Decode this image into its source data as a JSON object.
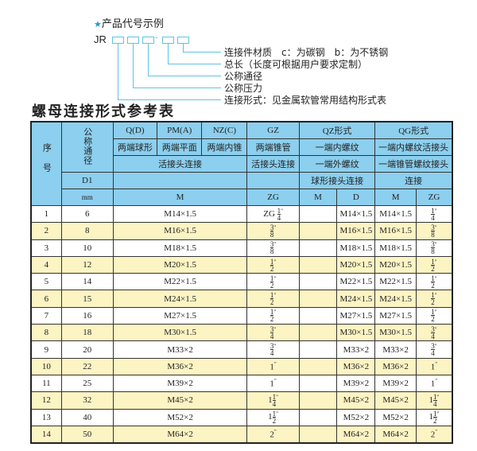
{
  "code_example": {
    "title": "产品代号示例",
    "star_icon": "star-icon",
    "prefix": "JR",
    "dash": "-",
    "labels": [
      "连接件材质　c：为碳钢　b：为不锈钢",
      "总长（长度可根据用户要求定制）",
      "公称通径",
      "公称压力",
      "连接形式：见金属软管常用结构形式表"
    ]
  },
  "table_title": "螺母连接形式参考表",
  "header": {
    "seq": "序号",
    "nominal": "公称通径",
    "d1": "D1",
    "mm": "mm",
    "q": "Q(D)",
    "pm": "PM(A)",
    "nz": "NZ(C)",
    "gz": "GZ",
    "qz": "QZ形式",
    "qg": "QG形式",
    "q_desc": "两端球形",
    "pm_desc": "两端平面",
    "nz_desc": "两端内锥",
    "gz_desc": "两端锥管",
    "qz_desc1": "一端内螺纹",
    "qg_desc1": "一端内螺纹活接头",
    "union": "活接头连接",
    "gz_union": "活接头连接",
    "qz_desc2": "一端外螺纹",
    "qg_desc2": "一端锥管螺纹接头",
    "qz_desc3": "球形接头连接",
    "qg_desc3": "连接",
    "m": "M",
    "zg": "ZG",
    "qz_m": "M",
    "qz_d": "D",
    "qg_m": "M",
    "qg_zg": "ZG"
  },
  "rows": [
    {
      "no": "1",
      "dn": "6",
      "m": "M14×1.5",
      "zg": {
        "pre": "ZG",
        "num": "1",
        "den": "4"
      },
      "qz_d": "M14×1.5",
      "qg_m": "M14×1.5",
      "qg_zg": {
        "num": "1",
        "den": "4"
      }
    },
    {
      "no": "2",
      "dn": "8",
      "m": "M16×1.5",
      "zg": {
        "num": "3",
        "den": "8"
      },
      "qz_d": "M16×1.5",
      "qg_m": "M16×1.5",
      "qg_zg": {
        "num": "3",
        "den": "8"
      }
    },
    {
      "no": "3",
      "dn": "10",
      "m": "M18×1.5",
      "zg": {
        "num": "3",
        "den": "8"
      },
      "qz_d": "M18×1.5",
      "qg_m": "M18×1.5",
      "qg_zg": {
        "num": "3",
        "den": "8"
      }
    },
    {
      "no": "4",
      "dn": "12",
      "m": "M20×1.5",
      "zg": {
        "num": "1",
        "den": "2"
      },
      "qz_d": "M20×1.5",
      "qg_m": "M20×1.5",
      "qg_zg": {
        "num": "1",
        "den": "2"
      }
    },
    {
      "no": "5",
      "dn": "14",
      "m": "M22×1.5",
      "zg": {
        "num": "1",
        "den": "2"
      },
      "qz_d": "M22×1.5",
      "qg_m": "M22×1.5",
      "qg_zg": {
        "num": "1",
        "den": "2"
      }
    },
    {
      "no": "6",
      "dn": "15",
      "m": "M24×1.5",
      "zg": {
        "num": "1",
        "den": "2"
      },
      "qz_d": "M24×1.5",
      "qg_m": "M24×1.5",
      "qg_zg": {
        "num": "1",
        "den": "2"
      }
    },
    {
      "no": "7",
      "dn": "16",
      "m": "M27×1.5",
      "zg": {
        "num": "1",
        "den": "2"
      },
      "qz_d": "M27×1.5",
      "qg_m": "M27×1.5",
      "qg_zg": {
        "num": "1",
        "den": "2"
      }
    },
    {
      "no": "8",
      "dn": "18",
      "m": "M30×1.5",
      "zg": {
        "num": "3",
        "den": "4"
      },
      "qz_d": "M30×1.5",
      "qg_m": "M30×1.5",
      "qg_zg": {
        "num": "3",
        "den": "4"
      }
    },
    {
      "no": "9",
      "dn": "20",
      "m": "M33×2",
      "zg": {
        "num": "3",
        "den": "4"
      },
      "qz_d": "M33×2",
      "qg_m": "M33×2",
      "qg_zg": {
        "num": "3",
        "den": "4"
      }
    },
    {
      "no": "10",
      "dn": "22",
      "m": "M36×2",
      "zg": {
        "whole": "1"
      },
      "qz_d": "M36×2",
      "qg_m": "M36×2",
      "qg_zg": {
        "whole": "1"
      }
    },
    {
      "no": "11",
      "dn": "25",
      "m": "M39×2",
      "zg": {
        "whole": "1"
      },
      "qz_d": "M39×2",
      "qg_m": "M39×2",
      "qg_zg": {
        "whole": "1"
      }
    },
    {
      "no": "12",
      "dn": "32",
      "m": "M45×2",
      "zg": {
        "whole": "1",
        "num": "1",
        "den": "4"
      },
      "qz_d": "M45×2",
      "qg_m": "M45×2",
      "qg_zg": {
        "whole": "1",
        "num": "1",
        "den": "4"
      }
    },
    {
      "no": "13",
      "dn": "40",
      "m": "M52×2",
      "zg": {
        "whole": "1",
        "num": "1",
        "den": "2"
      },
      "qz_d": "M52×2",
      "qg_m": "M52×2",
      "qg_zg": {
        "whole": "1",
        "num": "1",
        "den": "2"
      }
    },
    {
      "no": "14",
      "dn": "50",
      "m": "M64×2",
      "zg": {
        "whole": "2"
      },
      "qz_d": "M64×2",
      "qg_m": "M64×2",
      "qg_zg": {
        "whole": "2"
      }
    }
  ],
  "colors": {
    "header_bg": "#8ccfee",
    "stripe_bg": "#fdf4c4",
    "accent": "#1a9ad6"
  }
}
